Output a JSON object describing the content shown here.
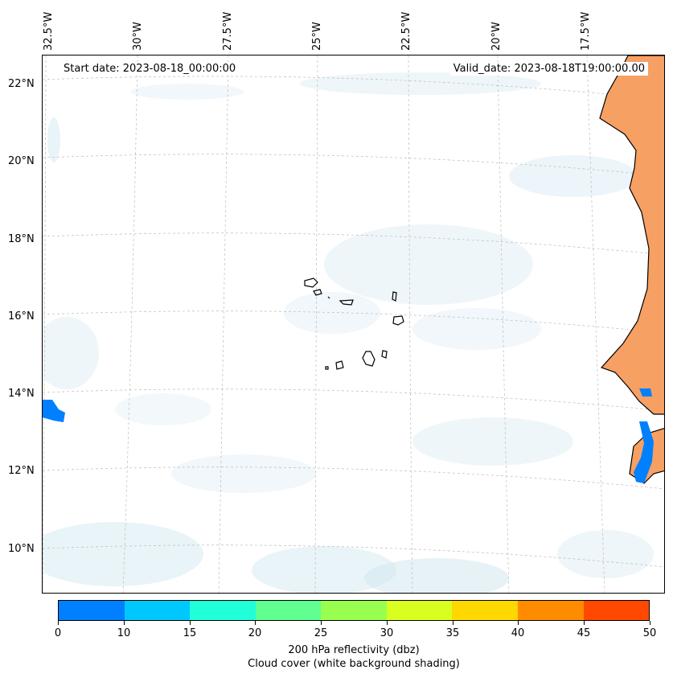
{
  "map": {
    "start_date": "Start date: 2023-08-18_00:00:00",
    "valid_date": "Valid_date: 2023-08-18T19:00:00.00",
    "lon_labels": [
      "32.5°W",
      "30°W",
      "27.5°W",
      "25°W",
      "22.5°W",
      "20°W",
      "17.5°W"
    ],
    "lat_labels": [
      "22°N",
      "20°N",
      "18°N",
      "16°N",
      "14°N",
      "12°N",
      "10°N"
    ],
    "colors": {
      "land": "#f7a063",
      "cloud": "#cfe6ef",
      "coast": "#000000",
      "grid": "#bbbbbb"
    }
  },
  "colorbar": {
    "ticks": [
      "0",
      "10",
      "15",
      "20",
      "25",
      "30",
      "35",
      "40",
      "45",
      "50"
    ],
    "colors": [
      "#0080ff",
      "#00c8ff",
      "#20ffd8",
      "#60ff90",
      "#98ff50",
      "#d8ff20",
      "#ffd800",
      "#ff8c00",
      "#ff4800"
    ],
    "label_line1": "200 hPa reflectivity (dbz)",
    "label_line2": "Cloud cover (white background shading)"
  }
}
